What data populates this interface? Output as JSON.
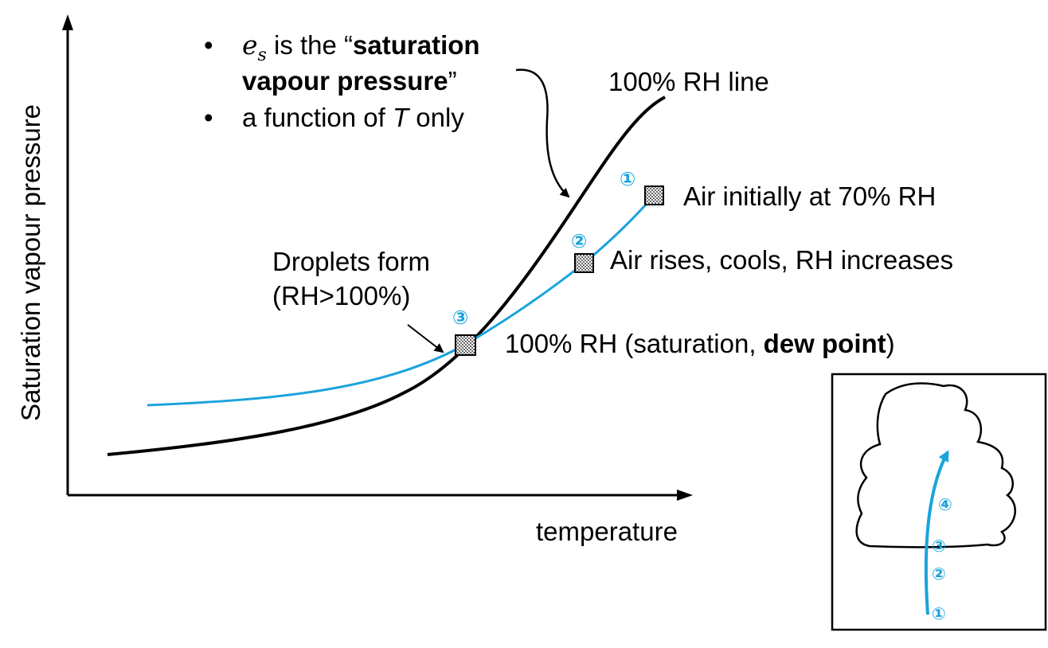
{
  "axes": {
    "ylabel": "Saturation vapour pressure",
    "xlabel": "temperature"
  },
  "note": {
    "bullet": "•",
    "es_symbol": "e",
    "es_subscript": "s",
    "line1_middle": " is the “",
    "line1_bold": "saturation",
    "line2_bold": "vapour pressure",
    "line2_end": "”",
    "line3_start": "a function of ",
    "line3_italic": "T",
    "line3_end": " only"
  },
  "curve_label": "100% RH line",
  "points": [
    {
      "marker": "①",
      "label": "Air initially at 70% RH"
    },
    {
      "marker": "②",
      "label": "Air rises, cools, RH increases"
    },
    {
      "marker": "③",
      "label_start": "100% RH (saturation, ",
      "label_bold": "dew point",
      "label_end": ")"
    }
  ],
  "droplets": {
    "line1": "Droplets form",
    "line2": "(RH>100%)"
  },
  "inset": {
    "markers": [
      "①",
      "②",
      "③",
      "④"
    ]
  },
  "colors": {
    "path": "#1aa3dc",
    "curve": "#000000"
  }
}
